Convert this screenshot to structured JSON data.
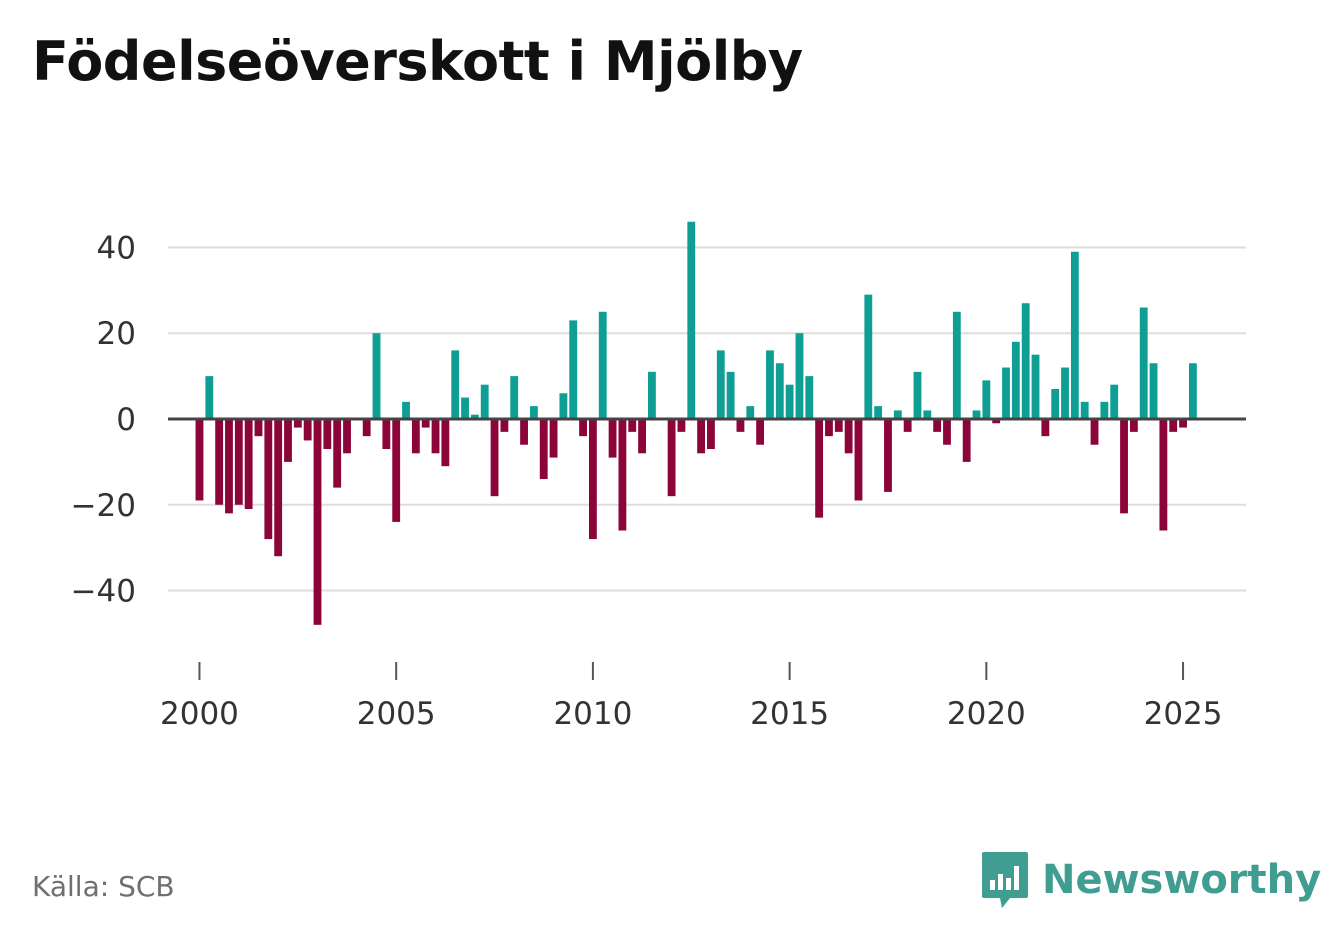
{
  "title": "Födelseöverskott i Mjölby",
  "source": "Källa: SCB",
  "brand": {
    "name": "Newsworthy",
    "icon": "newsworthy-logo-icon"
  },
  "colors": {
    "positive": "#0f9e94",
    "negative": "#8c0539",
    "grid": "#dddddd",
    "zero": "#444444",
    "brand": "#3f9d92"
  },
  "chart_data": {
    "type": "bar",
    "title": "Födelseöverskott i Mjölby",
    "xlabel": "",
    "ylabel": "",
    "frequency": "quarterly",
    "x_start": 2000,
    "xlim": [
      1999.2,
      2026.6
    ],
    "ylim": [
      -52,
      52
    ],
    "yticks": [
      -40,
      -20,
      0,
      20,
      40
    ],
    "ytick_labels": [
      "−40",
      "−20",
      "0",
      "20",
      "40"
    ],
    "xticks": [
      2000,
      2005,
      2010,
      2015,
      2020,
      2025
    ],
    "xtick_labels": [
      "2000",
      "2005",
      "2010",
      "2015",
      "2020",
      "2025"
    ],
    "grid": true,
    "values": [
      -19,
      10,
      -20,
      -22,
      -20,
      -21,
      -4,
      -28,
      -32,
      -10,
      -2,
      -5,
      -48,
      -7,
      -16,
      -8,
      0,
      -4,
      20,
      -7,
      -24,
      4,
      -8,
      -2,
      -8,
      -11,
      16,
      5,
      1,
      8,
      -18,
      -3,
      10,
      -6,
      3,
      -14,
      -9,
      6,
      23,
      -4,
      -28,
      25,
      -9,
      -26,
      -3,
      -8,
      11,
      0,
      -18,
      -3,
      46,
      -8,
      -7,
      16,
      11,
      -3,
      3,
      -6,
      16,
      13,
      8,
      20,
      10,
      -23,
      -4,
      -3,
      -8,
      -19,
      29,
      3,
      -17,
      2,
      -3,
      11,
      2,
      -3,
      -6,
      25,
      -10,
      2,
      9,
      -1,
      12,
      18,
      27,
      15,
      -4,
      7,
      12,
      39,
      4,
      -6,
      4,
      8,
      -22,
      -3,
      26,
      13,
      -26,
      -3,
      -2,
      13
    ]
  }
}
